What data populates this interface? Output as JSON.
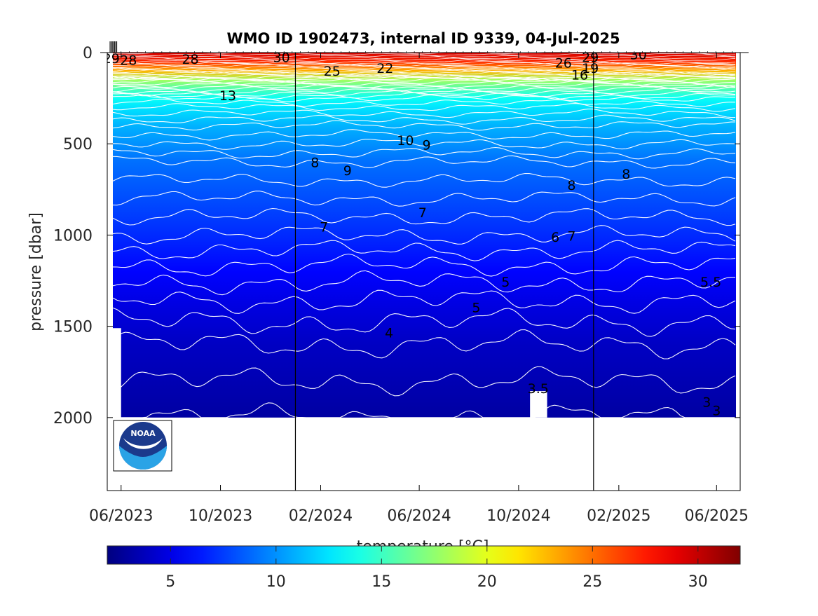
{
  "chart_data": {
    "type": "heatmap",
    "title": "WMO ID 1902473, internal ID 9339, 04-Jul-2025",
    "xlabel": "",
    "ylabel": "pressure [dbar]",
    "colorbar_label": "temperature [°C]",
    "x_ticks": [
      "06/2023",
      "10/2023",
      "02/2024",
      "06/2024",
      "10/2024",
      "02/2025",
      "06/2025"
    ],
    "x_range": [
      "2023-05-15",
      "2025-06-30"
    ],
    "y_ticks": [
      0,
      500,
      1000,
      1500,
      2000
    ],
    "y_range": [
      2400,
      0
    ],
    "y_reversed": true,
    "year_boundaries": [
      "2024-01-01",
      "2025-01-01"
    ],
    "profile_depth_max": 2000,
    "colorbar_ticks": [
      5,
      10,
      15,
      20,
      25,
      30
    ],
    "colorbar_range": [
      2,
      32
    ],
    "colormap": "jet",
    "temperature_profile": [
      {
        "p": 0,
        "t": 29.5
      },
      {
        "p": 50,
        "t": 27
      },
      {
        "p": 100,
        "t": 23
      },
      {
        "p": 150,
        "t": 18
      },
      {
        "p": 200,
        "t": 15.5
      },
      {
        "p": 250,
        "t": 13.5
      },
      {
        "p": 300,
        "t": 12.5
      },
      {
        "p": 400,
        "t": 11
      },
      {
        "p": 500,
        "t": 10
      },
      {
        "p": 600,
        "t": 9
      },
      {
        "p": 800,
        "t": 8
      },
      {
        "p": 1000,
        "t": 7
      },
      {
        "p": 1200,
        "t": 5.8
      },
      {
        "p": 1400,
        "t": 4.8
      },
      {
        "p": 1600,
        "t": 4
      },
      {
        "p": 1800,
        "t": 3.5
      },
      {
        "p": 2000,
        "t": 3
      }
    ],
    "contour_labels": [
      {
        "text": "29",
        "date": "2023-05-20",
        "p": 30
      },
      {
        "text": "28",
        "date": "2023-06-10",
        "p": 40
      },
      {
        "text": "28",
        "date": "2023-08-25",
        "p": 35
      },
      {
        "text": "30",
        "date": "2023-12-15",
        "p": 25
      },
      {
        "text": "25",
        "date": "2024-02-15",
        "p": 100
      },
      {
        "text": "22",
        "date": "2024-04-20",
        "p": 85
      },
      {
        "text": "26",
        "date": "2024-11-25",
        "p": 55
      },
      {
        "text": "29",
        "date": "2024-12-28",
        "p": 25
      },
      {
        "text": "30",
        "date": "2025-02-25",
        "p": 10
      },
      {
        "text": "16",
        "date": "2024-12-15",
        "p": 120
      },
      {
        "text": "19",
        "date": "2024-12-28",
        "p": 85
      },
      {
        "text": "13",
        "date": "2023-10-10",
        "p": 235
      },
      {
        "text": "10",
        "date": "2024-05-15",
        "p": 480
      },
      {
        "text": "9",
        "date": "2024-06-10",
        "p": 505
      },
      {
        "text": "8",
        "date": "2024-01-25",
        "p": 600
      },
      {
        "text": "9",
        "date": "2024-03-05",
        "p": 645
      },
      {
        "text": "8",
        "date": "2024-12-05",
        "p": 725
      },
      {
        "text": "8",
        "date": "2025-02-10",
        "p": 665
      },
      {
        "text": "7",
        "date": "2024-06-05",
        "p": 875
      },
      {
        "text": "7",
        "date": "2024-02-05",
        "p": 955
      },
      {
        "text": "6",
        "date": "2024-11-15",
        "p": 1010
      },
      {
        "text": "7",
        "date": "2024-12-05",
        "p": 1005
      },
      {
        "text": "5",
        "date": "2024-09-15",
        "p": 1255
      },
      {
        "text": "5.5",
        "date": "2025-05-25",
        "p": 1255
      },
      {
        "text": "5",
        "date": "2024-08-10",
        "p": 1395
      },
      {
        "text": "4",
        "date": "2024-04-25",
        "p": 1535
      },
      {
        "text": "3.5",
        "date": "2024-10-25",
        "p": 1840
      },
      {
        "text": "3",
        "date": "2025-05-20",
        "p": 1915
      },
      {
        "text": "3",
        "date": "2025-06-01",
        "p": 1960
      }
    ]
  },
  "logo": {
    "text": "NOAA",
    "colors": [
      "#1b3a8c",
      "#2aa3e6",
      "#ffffff"
    ]
  }
}
